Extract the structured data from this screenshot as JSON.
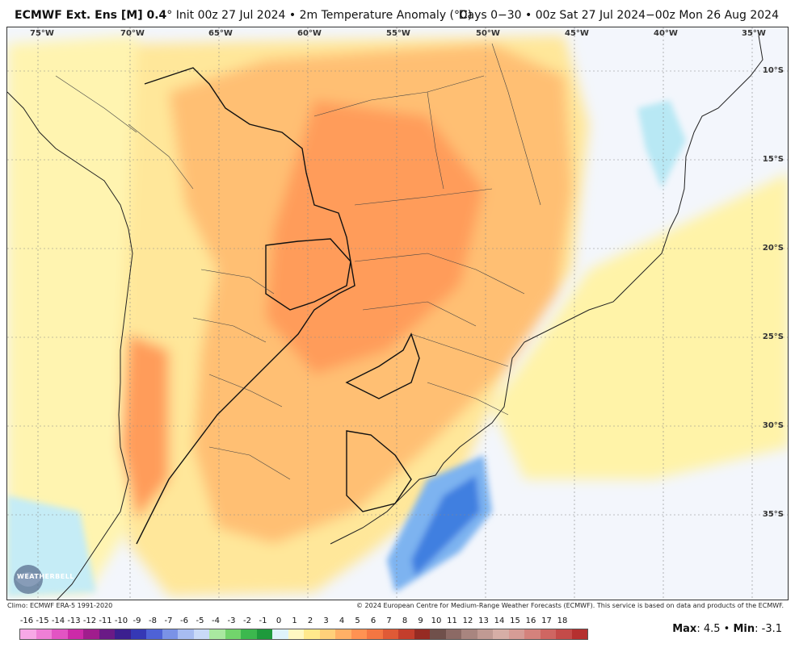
{
  "header": {
    "title_bold": "ECMWF Ext. Ens [M] 0.4",
    "title_rest": "° Init 00z 27 Jul 2024 • 2m Temperature Anomaly (°C)",
    "right": "Days 0−30 • 00z Sat 27 Jul 2024−00z Mon 26 Aug 2024"
  },
  "map": {
    "lon_labels": [
      "75°W",
      "70°W",
      "65°W",
      "60°W",
      "55°W",
      "50°W",
      "45°W",
      "40°W",
      "35°W"
    ],
    "lat_labels": [
      "10°S",
      "15°S",
      "20°S",
      "25°S",
      "30°S",
      "35°S"
    ],
    "logo_text": "WEATHERBELL"
  },
  "footer": {
    "left": "Climo: ECMWF ERA-5 1991-2020",
    "right": "© 2024 European Centre for Medium-Range Weather Forecasts (ECMWF). This service is based on data and products of the ECMWF."
  },
  "colorbar": {
    "ticks": [
      "-16",
      "-15",
      "-14",
      "-13",
      "-12",
      "-11",
      "-10",
      "-9",
      "-8",
      "-7",
      "-6",
      "-5",
      "-4",
      "-3",
      "-2",
      "-1",
      "0",
      "1",
      "2",
      "3",
      "4",
      "5",
      "6",
      "7",
      "8",
      "9",
      "10",
      "11",
      "12",
      "13",
      "14",
      "15",
      "16",
      "17",
      "18"
    ],
    "colors": [
      "#f7a8e6",
      "#ee7fd6",
      "#e254c3",
      "#cc2aa8",
      "#a01d8d",
      "#6a1a86",
      "#3b1f8f",
      "#3538b5",
      "#4e62d6",
      "#7a92e6",
      "#a7bcf1",
      "#c9daf8",
      "#a9e8a0",
      "#72d46c",
      "#3cb84e",
      "#1e9a3c",
      "#dff3fb",
      "#fff8c2",
      "#ffe98c",
      "#ffd07a",
      "#ffb066",
      "#ff9252",
      "#f47642",
      "#e05a36",
      "#c43e2c",
      "#962b23",
      "#70504b",
      "#8c6a65",
      "#a8857f",
      "#c09a93",
      "#d6aea6",
      "#d69c96",
      "#d4827c",
      "#cf6662",
      "#c44b49",
      "#b5302f"
    ]
  },
  "stats": {
    "max_label": "Max",
    "max_value": ": 4.5",
    "sep": " • ",
    "min_label": "Min",
    "min_value": ": -3.1"
  }
}
